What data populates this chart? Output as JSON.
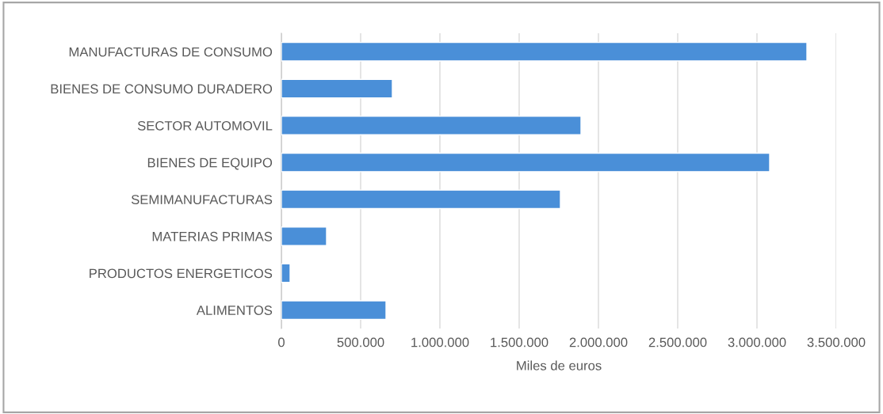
{
  "chart_data": {
    "type": "bar",
    "orientation": "horizontal",
    "xlabel": "Miles de euros",
    "categories": [
      "MANUFACTURAS DE CONSUMO",
      "BIENES DE CONSUMO DURADERO",
      "SECTOR AUTOMOVIL",
      "BIENES DE EQUIPO",
      "SEMIMANUFACTURAS",
      "MATERIAS PRIMAS",
      "PRODUCTOS ENERGETICOS",
      "ALIMENTOS"
    ],
    "values": [
      3315000,
      700000,
      1890000,
      3080000,
      1760000,
      285000,
      55000,
      660000
    ],
    "color": "#4a8fd8",
    "xlim": [
      0,
      3500000
    ],
    "xticks": [
      0,
      {
        "value": 500000,
        "label": "500.000"
      },
      {
        "value": 1000000,
        "label": "1.000.000"
      },
      {
        "value": 1500000,
        "label": "1.500.000"
      },
      {
        "value": 2000000,
        "label": "2.000.000"
      },
      {
        "value": 2500000,
        "label": "2.500.000"
      },
      {
        "value": 3000000,
        "label": "3.000.000"
      },
      {
        "value": 3500000,
        "label": "3.500.000"
      }
    ],
    "grid": "x",
    "legend": false
  }
}
